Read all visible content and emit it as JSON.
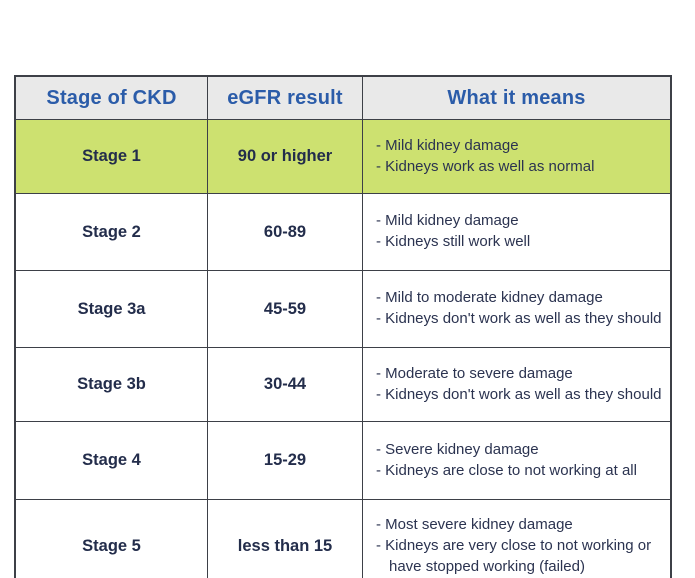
{
  "colors": {
    "header_text": "#2b5ca9",
    "header_background": "#e9e9e9",
    "body_text": "#232d4b",
    "highlight_row_background": "#cde170",
    "table_border": "#3d4047",
    "page_background": "#ffffff"
  },
  "chart_data": {
    "type": "table",
    "columns": [
      "Stage of CKD",
      "eGFR result",
      "What it means"
    ],
    "bullet": "-",
    "rows": [
      {
        "stage": "Stage 1",
        "egfr": "90 or higher",
        "meaning": [
          "Mild kidney damage",
          "Kidneys work as well as normal"
        ],
        "highlight": true
      },
      {
        "stage": "Stage 2",
        "egfr": "60-89",
        "meaning": [
          "Mild kidney damage",
          "Kidneys still work well"
        ],
        "highlight": false
      },
      {
        "stage": "Stage 3a",
        "egfr": "45-59",
        "meaning": [
          "Mild to moderate kidney damage",
          "Kidneys don't work as well as they should"
        ],
        "highlight": false
      },
      {
        "stage": "Stage 3b",
        "egfr": "30-44",
        "meaning": [
          "Moderate to severe damage",
          "Kidneys don't work as well as they should"
        ],
        "highlight": false
      },
      {
        "stage": "Stage 4",
        "egfr": "15-29",
        "meaning": [
          "Severe kidney damage",
          "Kidneys are close to not working at all"
        ],
        "highlight": false
      },
      {
        "stage": "Stage 5",
        "egfr": "less than 15",
        "meaning": [
          "Most severe kidney damage",
          "Kidneys are very close to not working or have stopped working (failed)"
        ],
        "highlight": false
      }
    ]
  }
}
